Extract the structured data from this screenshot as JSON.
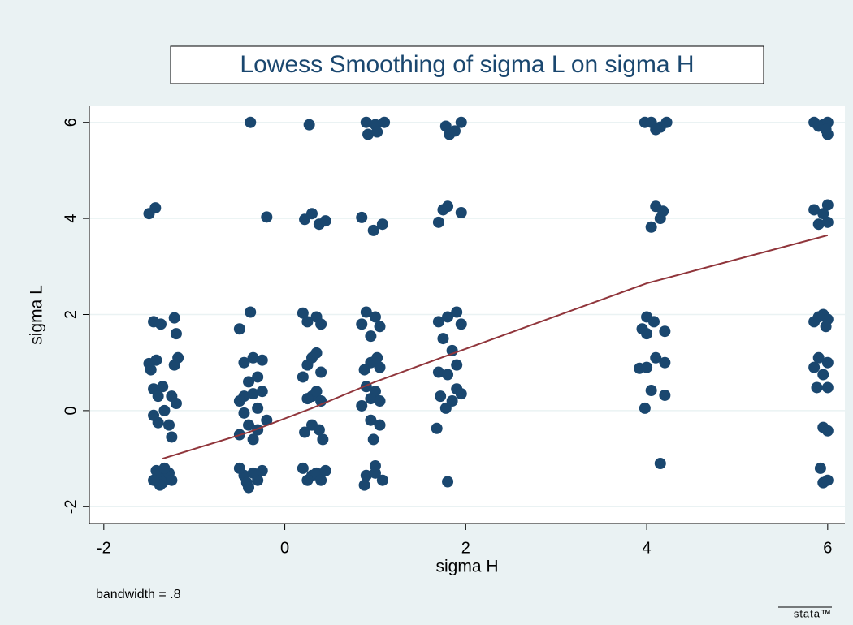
{
  "chart_data": {
    "type": "scatter",
    "title": "Lowess Smoothing of sigma L on sigma H",
    "x_label": "sigma H",
    "y_label": "sigma L",
    "note": "bandwidth = .8",
    "watermark": "stata™",
    "xlim": [
      -2.16,
      6.19
    ],
    "ylim": [
      -2.35,
      6.35
    ],
    "xticks": [
      -2,
      0,
      2,
      4,
      6
    ],
    "yticks": [
      -2,
      0,
      2,
      4,
      6
    ],
    "grid": true,
    "series": [
      {
        "type": "scatter",
        "color": "#1a476f",
        "x": [
          -1.4,
          -1.3,
          -1.35,
          -1.42,
          -1.28,
          -1.33,
          -1.38,
          -1.25,
          -1.45,
          -1.5,
          -1.43,
          -1.45,
          -1.37,
          -1.22,
          -1.2,
          -1.5,
          -1.42,
          -1.18,
          -1.22,
          -1.45,
          -1.35,
          -1.25,
          -1.4,
          -1.2,
          -1.48,
          -1.33,
          -1.28,
          -1.4,
          -1.25,
          -1.45,
          -0.38,
          -0.5,
          -0.38,
          -0.2,
          -0.45,
          -0.35,
          -0.3,
          -0.42,
          -0.25,
          -0.5,
          -0.4,
          -0.45,
          -0.35,
          -0.25,
          -0.5,
          -0.4,
          -0.3,
          -0.45,
          -0.35,
          -0.25,
          -0.4,
          -0.3,
          -0.5,
          -0.35,
          -0.2,
          -0.45,
          -0.3,
          0.27,
          0.22,
          0.3,
          0.38,
          0.45,
          0.2,
          0.35,
          0.4,
          0.25,
          0.3,
          0.35,
          0.25,
          0.4,
          0.2,
          0.3,
          0.35,
          0.25,
          0.4,
          0.3,
          0.38,
          0.22,
          0.42,
          0.3,
          0.35,
          0.25,
          0.4,
          0.45,
          0.2,
          0.9,
          1.0,
          1.1,
          0.92,
          1.02,
          0.85,
          0.98,
          1.08,
          0.9,
          1.0,
          0.85,
          1.05,
          0.95,
          0.95,
          1.05,
          0.88,
          1.02,
          0.9,
          1.0,
          0.95,
          1.05,
          0.85,
          0.95,
          1.05,
          0.98,
          0.9,
          1.0,
          1.08,
          0.88,
          1.0,
          1.78,
          1.82,
          1.95,
          1.88,
          1.7,
          1.75,
          1.8,
          1.95,
          1.7,
          1.8,
          1.9,
          1.95,
          1.75,
          1.85,
          1.9,
          1.7,
          1.8,
          1.9,
          1.72,
          1.85,
          1.95,
          1.78,
          1.68,
          1.8,
          3.98,
          4.05,
          4.15,
          4.22,
          4.1,
          4.1,
          4.18,
          4.05,
          4.15,
          4.0,
          4.08,
          3.95,
          4.0,
          4.2,
          4.1,
          3.92,
          4.0,
          4.2,
          4.05,
          4.2,
          3.98,
          4.15,
          5.85,
          5.95,
          6.0,
          5.9,
          6.0,
          5.98,
          5.85,
          6.0,
          5.95,
          5.9,
          6.0,
          5.85,
          5.95,
          6.0,
          5.9,
          5.98,
          5.9,
          5.85,
          6.0,
          5.95,
          6.0,
          5.88,
          5.95,
          6.0,
          5.92,
          5.95,
          6.0
        ],
        "values": [
          -1.35,
          -1.4,
          -1.5,
          -1.25,
          -1.3,
          -1.2,
          -1.55,
          -1.45,
          -1.45,
          4.1,
          4.22,
          1.85,
          1.8,
          1.93,
          1.6,
          0.98,
          1.05,
          1.1,
          0.95,
          0.45,
          0.5,
          0.3,
          0.3,
          0.15,
          0.85,
          0.0,
          -0.3,
          -0.25,
          -0.55,
          -0.1,
          6.0,
          1.7,
          2.05,
          4.03,
          -1.35,
          -1.3,
          -1.45,
          -1.5,
          -1.25,
          -1.2,
          -1.6,
          0.3,
          0.35,
          0.4,
          0.2,
          0.6,
          0.7,
          1.0,
          1.1,
          1.05,
          -0.3,
          -0.4,
          -0.5,
          -0.6,
          -0.2,
          -0.05,
          0.05,
          5.95,
          3.98,
          4.1,
          3.88,
          3.95,
          2.03,
          1.95,
          1.8,
          1.85,
          1.1,
          1.2,
          0.95,
          0.8,
          0.7,
          0.3,
          0.4,
          0.25,
          0.2,
          -0.3,
          -0.4,
          -0.45,
          -0.6,
          -1.35,
          -1.3,
          -1.45,
          -1.45,
          -1.25,
          -1.2,
          6.0,
          5.95,
          6.0,
          5.75,
          5.8,
          4.02,
          3.75,
          3.88,
          2.05,
          1.95,
          1.8,
          1.75,
          1.55,
          1.0,
          0.9,
          0.85,
          1.1,
          0.5,
          0.4,
          0.25,
          0.2,
          0.1,
          -0.2,
          -0.3,
          -0.6,
          -1.35,
          -1.3,
          -1.45,
          -1.55,
          -1.15,
          5.92,
          5.75,
          6.0,
          5.82,
          3.92,
          4.18,
          4.25,
          4.12,
          1.85,
          1.95,
          2.05,
          1.8,
          1.5,
          1.25,
          0.95,
          0.8,
          0.75,
          0.45,
          0.3,
          0.2,
          0.35,
          0.05,
          -0.37,
          -1.48,
          6.0,
          6.0,
          5.9,
          6.0,
          5.85,
          4.25,
          4.15,
          3.82,
          4.0,
          1.95,
          1.85,
          1.7,
          1.6,
          1.65,
          1.1,
          0.88,
          0.9,
          1.0,
          0.42,
          0.32,
          0.05,
          -1.1,
          6.0,
          5.95,
          6.0,
          5.92,
          5.75,
          5.85,
          4.18,
          4.28,
          4.1,
          3.88,
          3.92,
          1.85,
          2.0,
          1.9,
          1.95,
          1.75,
          1.1,
          0.9,
          1.0,
          0.75,
          0.48,
          0.48,
          -0.35,
          -0.42,
          -1.2,
          -1.5,
          -1.45
        ]
      },
      {
        "type": "line",
        "color": "#90353b",
        "x": [
          -1.35,
          -0.4,
          0.3,
          1.0,
          1.8,
          4.0,
          6.0
        ],
        "values": [
          -1.0,
          -0.45,
          0.05,
          0.6,
          1.15,
          2.65,
          3.65
        ]
      }
    ]
  }
}
